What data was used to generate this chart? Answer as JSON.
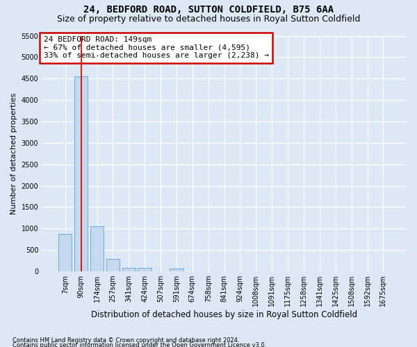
{
  "title": "24, BEDFORD ROAD, SUTTON COLDFIELD, B75 6AA",
  "subtitle": "Size of property relative to detached houses in Royal Sutton Coldfield",
  "xlabel": "Distribution of detached houses by size in Royal Sutton Coldfield",
  "ylabel": "Number of detached properties",
  "footnote1": "Contains HM Land Registry data © Crown copyright and database right 2024.",
  "footnote2": "Contains public sector information licensed under the Open Government Licence v3.0.",
  "bar_labels": [
    "7sqm",
    "90sqm",
    "174sqm",
    "257sqm",
    "341sqm",
    "424sqm",
    "507sqm",
    "591sqm",
    "674sqm",
    "758sqm",
    "841sqm",
    "924sqm",
    "1008sqm",
    "1091sqm",
    "1175sqm",
    "1258sqm",
    "1341sqm",
    "1425sqm",
    "1508sqm",
    "1592sqm",
    "1675sqm"
  ],
  "bar_values": [
    880,
    4560,
    1060,
    290,
    90,
    90,
    0,
    60,
    0,
    0,
    0,
    0,
    0,
    0,
    0,
    0,
    0,
    0,
    0,
    0,
    0
  ],
  "bar_color": "#c5d8ee",
  "bar_edge_color": "#6aaad4",
  "annotation_line1": "24 BEDFORD ROAD: 149sqm",
  "annotation_line2": "← 67% of detached houses are smaller (4,595)",
  "annotation_line3": "33% of semi-detached houses are larger (2,238) →",
  "annotation_box_facecolor": "#ffffff",
  "annotation_box_edgecolor": "#cc0000",
  "property_line_color": "#cc2222",
  "property_line_x": 1,
  "ylim": [
    0,
    5500
  ],
  "yticks": [
    0,
    500,
    1000,
    1500,
    2000,
    2500,
    3000,
    3500,
    4000,
    4500,
    5000,
    5500
  ],
  "background_color": "#dde8f5",
  "grid_color": "#ffffff",
  "title_fontsize": 10,
  "subtitle_fontsize": 9,
  "ylabel_fontsize": 8,
  "xlabel_fontsize": 8.5,
  "tick_fontsize": 7,
  "footnote_fontsize": 6
}
